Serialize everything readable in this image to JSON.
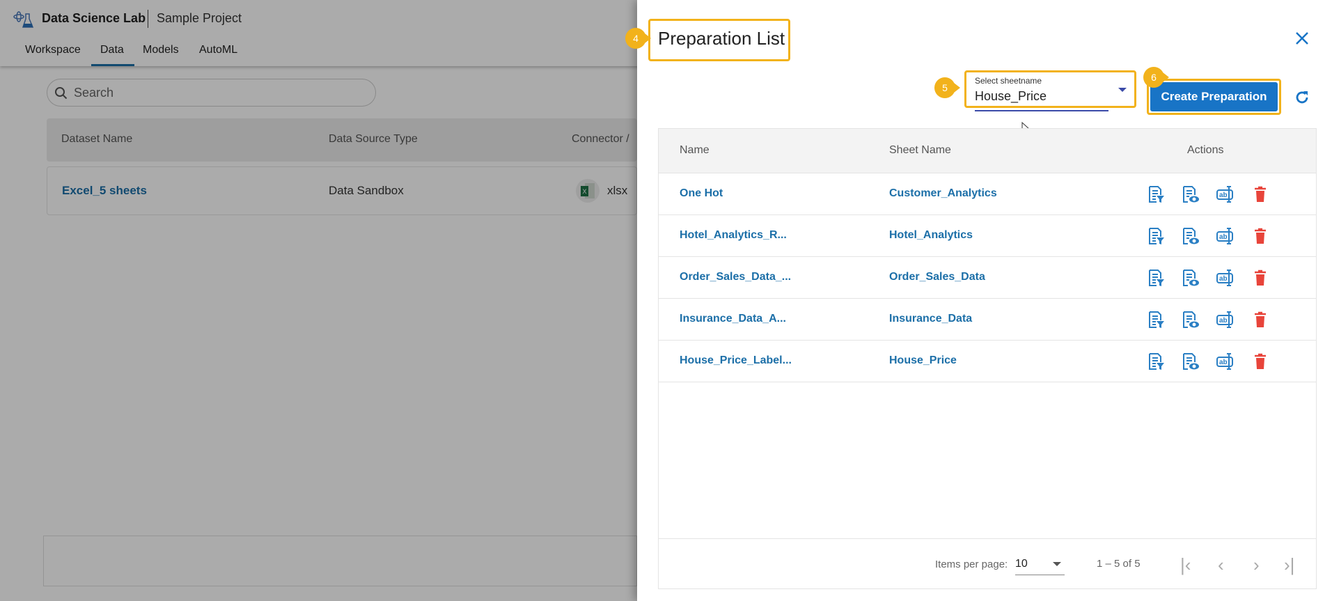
{
  "app": {
    "title": "Data Science Lab",
    "project": "Sample Project"
  },
  "tabs": [
    {
      "label": "Workspace"
    },
    {
      "label": "Data",
      "active": true
    },
    {
      "label": "Models"
    },
    {
      "label": "AutoML"
    }
  ],
  "search": {
    "placeholder": "Search"
  },
  "datasets": {
    "columns": [
      "Dataset Name",
      "Data Source Type",
      "Connector /"
    ],
    "rows": [
      {
        "name": "Excel_5 sheets",
        "source": "Data Sandbox",
        "connector": "xlsx",
        "connector_icon": "excel-icon"
      }
    ]
  },
  "panel": {
    "title": "Preparation List",
    "close_icon": "close-icon",
    "select": {
      "label": "Select sheetname",
      "value": "House_Price"
    },
    "create_button": "Create Preparation",
    "refresh_icon": "refresh-icon",
    "badges": [
      "4",
      "5",
      "6"
    ],
    "columns": [
      "Name",
      "Sheet Name",
      "Actions"
    ],
    "rows": [
      {
        "name": "One Hot",
        "sheet": "Customer_Analytics"
      },
      {
        "name": "Hotel_Analytics_R...",
        "sheet": "Hotel_Analytics"
      },
      {
        "name": "Order_Sales_Data_...",
        "sheet": "Order_Sales_Data"
      },
      {
        "name": "Insurance_Data_A...",
        "sheet": "Insurance_Data"
      },
      {
        "name": "House_Price_Label...",
        "sheet": "House_Price"
      }
    ],
    "action_icons": [
      "filter-document-icon",
      "view-document-icon",
      "rename-icon",
      "delete-icon"
    ],
    "pagination": {
      "items_label": "Items per page:",
      "per_page": "10",
      "range": "1 – 5 of 5"
    }
  },
  "colors": {
    "accent": "#1874c6",
    "link": "#1c6fa8",
    "highlight": "#f2b21b",
    "delete": "#e8443a"
  }
}
